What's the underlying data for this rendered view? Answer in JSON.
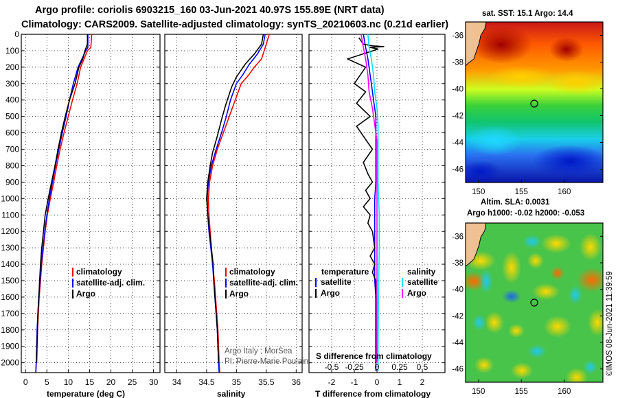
{
  "title_line1": "Argo profile: coriolis 6903215_160 03-Jun-2021 40.97S 155.89E (NRT data)",
  "title_line2": "Climatology: CARS2009. Satellite-adjusted climatology: synTS_20210603.nc (0.21d earlier)",
  "colors": {
    "climatology": "#ff0000",
    "satellite": "#0000ff",
    "argo": "#000000",
    "sat_t": "#00e0ff",
    "sal_diff": "#ff00ff"
  },
  "chart_data": [
    {
      "type": "line",
      "name": "temperature-panel",
      "xlabel": "temperature (deg C)",
      "xlim": [
        -1,
        31.5
      ],
      "ylim": [
        2060,
        0
      ],
      "xticks": [
        0,
        5,
        10,
        15,
        20,
        25,
        30
      ],
      "yticks": [
        0,
        100,
        200,
        300,
        400,
        500,
        600,
        700,
        800,
        900,
        1000,
        1100,
        1200,
        1300,
        1400,
        1500,
        1600,
        1700,
        1800,
        1900,
        2000
      ],
      "legend": [
        "climatology",
        "satellite-adj. clim.",
        "Argo"
      ],
      "series": [
        {
          "name": "climatology",
          "color": "red",
          "points": [
            [
              15.5,
              0
            ],
            [
              15.3,
              80
            ],
            [
              14.5,
              100
            ],
            [
              13.7,
              150
            ],
            [
              12.9,
              200
            ],
            [
              12.1,
              300
            ],
            [
              11.0,
              400
            ],
            [
              10.0,
              500
            ],
            [
              9.0,
              600
            ],
            [
              8.1,
              700
            ],
            [
              7.3,
              800
            ],
            [
              6.6,
              900
            ],
            [
              5.8,
              1000
            ],
            [
              5.1,
              1100
            ],
            [
              4.6,
              1200
            ],
            [
              4.2,
              1300
            ],
            [
              3.8,
              1400
            ],
            [
              3.5,
              1500
            ],
            [
              3.2,
              1600
            ],
            [
              3.0,
              1700
            ],
            [
              2.8,
              1800
            ],
            [
              2.6,
              1900
            ],
            [
              2.5,
              2000
            ],
            [
              2.4,
              2060
            ]
          ]
        },
        {
          "name": "satellite-adj. clim.",
          "color": "blue",
          "points": [
            [
              14.6,
              0
            ],
            [
              14.6,
              80
            ],
            [
              14.1,
              100
            ],
            [
              13.2,
              150
            ],
            [
              12.3,
              200
            ],
            [
              11.2,
              300
            ],
            [
              10.3,
              400
            ],
            [
              9.5,
              500
            ],
            [
              8.6,
              600
            ],
            [
              7.8,
              700
            ],
            [
              7.0,
              800
            ],
            [
              6.3,
              900
            ],
            [
              5.6,
              1000
            ],
            [
              5.0,
              1100
            ],
            [
              4.5,
              1200
            ],
            [
              4.1,
              1300
            ],
            [
              3.7,
              1400
            ],
            [
              3.4,
              1500
            ],
            [
              3.1,
              1600
            ],
            [
              2.9,
              1700
            ],
            [
              2.7,
              1800
            ],
            [
              2.6,
              1900
            ],
            [
              2.5,
              2000
            ],
            [
              2.4,
              2060
            ]
          ]
        },
        {
          "name": "Argo",
          "color": "black",
          "points": [
            [
              14.5,
              0
            ],
            [
              14.5,
              60
            ],
            [
              13.9,
              100
            ],
            [
              13.4,
              150
            ],
            [
              12.5,
              200
            ],
            [
              11.6,
              300
            ],
            [
              10.3,
              400
            ],
            [
              9.3,
              500
            ],
            [
              8.4,
              600
            ],
            [
              7.6,
              700
            ],
            [
              6.9,
              800
            ],
            [
              6.1,
              900
            ],
            [
              5.3,
              1000
            ],
            [
              4.6,
              1100
            ],
            [
              4.2,
              1200
            ],
            [
              3.8,
              1300
            ],
            [
              3.5,
              1400
            ],
            [
              3.3,
              1500
            ],
            [
              3.1,
              1600
            ],
            [
              2.9,
              1700
            ],
            [
              2.8,
              1800
            ],
            [
              2.7,
              1900
            ],
            [
              2.6,
              2000
            ]
          ]
        }
      ]
    },
    {
      "type": "line",
      "name": "salinity-panel",
      "xlabel": "salinity",
      "xlim": [
        33.8,
        36.1
      ],
      "ylim": [
        2060,
        0
      ],
      "xticks": [
        34,
        34.5,
        35,
        35.5,
        36
      ],
      "legend": [
        "climatology",
        "satellite-adj. clim.",
        "Argo"
      ],
      "annotation": [
        "Argo Italy ; MorSea",
        "PI: Pierre-Marie Poulain"
      ],
      "series": [
        {
          "name": "climatology",
          "color": "red",
          "points": [
            [
              35.55,
              0
            ],
            [
              35.5,
              60
            ],
            [
              35.42,
              150
            ],
            [
              35.3,
              200
            ],
            [
              35.2,
              250
            ],
            [
              35.08,
              300
            ],
            [
              34.98,
              400
            ],
            [
              34.88,
              500
            ],
            [
              34.78,
              600
            ],
            [
              34.68,
              700
            ],
            [
              34.6,
              800
            ],
            [
              34.55,
              900
            ],
            [
              34.53,
              1000
            ],
            [
              34.54,
              1100
            ],
            [
              34.56,
              1200
            ],
            [
              34.58,
              1300
            ],
            [
              34.6,
              1400
            ],
            [
              34.63,
              1500
            ],
            [
              34.65,
              1600
            ],
            [
              34.67,
              1700
            ],
            [
              34.69,
              1800
            ],
            [
              34.7,
              1900
            ],
            [
              34.71,
              2000
            ],
            [
              34.72,
              2060
            ]
          ]
        },
        {
          "name": "satellite-adj. clim.",
          "color": "blue",
          "points": [
            [
              35.48,
              0
            ],
            [
              35.45,
              60
            ],
            [
              35.35,
              120
            ],
            [
              35.22,
              180
            ],
            [
              35.1,
              250
            ],
            [
              35.0,
              300
            ],
            [
              34.9,
              400
            ],
            [
              34.83,
              500
            ],
            [
              34.75,
              600
            ],
            [
              34.66,
              700
            ],
            [
              34.58,
              800
            ],
            [
              34.53,
              900
            ],
            [
              34.51,
              1000
            ],
            [
              34.52,
              1100
            ],
            [
              34.54,
              1200
            ],
            [
              34.57,
              1300
            ],
            [
              34.6,
              1400
            ],
            [
              34.62,
              1500
            ],
            [
              34.64,
              1600
            ],
            [
              34.66,
              1700
            ],
            [
              34.68,
              1800
            ],
            [
              34.69,
              1900
            ],
            [
              34.7,
              2000
            ],
            [
              34.71,
              2060
            ]
          ]
        },
        {
          "name": "Argo",
          "color": "black",
          "points": [
            [
              35.45,
              0
            ],
            [
              35.42,
              60
            ],
            [
              35.3,
              120
            ],
            [
              35.15,
              180
            ],
            [
              35.0,
              260
            ],
            [
              34.92,
              320
            ],
            [
              34.82,
              430
            ],
            [
              34.75,
              520
            ],
            [
              34.68,
              620
            ],
            [
              34.6,
              720
            ],
            [
              34.56,
              800
            ],
            [
              34.52,
              900
            ],
            [
              34.5,
              1000
            ],
            [
              34.52,
              1100
            ],
            [
              34.55,
              1200
            ],
            [
              34.58,
              1300
            ],
            [
              34.61,
              1400
            ],
            [
              34.62,
              1500
            ],
            [
              34.64,
              1600
            ],
            [
              34.66,
              1700
            ],
            [
              34.68,
              1800
            ],
            [
              34.69,
              1900
            ],
            [
              34.7,
              2000
            ]
          ]
        }
      ]
    },
    {
      "type": "line",
      "name": "difference-panel",
      "xlabel": "T difference from climatology",
      "xlabel2": "S difference from climatology",
      "xlim": [
        -3,
        3
      ],
      "ylim": [
        2060,
        0
      ],
      "xticks": [
        -2,
        -1,
        0,
        1,
        2
      ],
      "xtick_labels": [
        "-2",
        "-1",
        "0",
        "1",
        "2"
      ],
      "xticks2": [
        -2,
        -1,
        0,
        1,
        2
      ],
      "xtick_labels2": [
        "-0.5",
        "-0.25",
        "0",
        "0.25",
        "0.5"
      ],
      "legend_left_title": "temperature",
      "legend_right_title": "salinity",
      "legend_left": [
        "satellite",
        "Argo"
      ],
      "legend_right": [
        "satellite",
        "Argo"
      ],
      "series": [
        {
          "name": "T satellite",
          "color": "blue",
          "points": [
            [
              -0.6,
              0
            ],
            [
              -0.5,
              80
            ],
            [
              -0.4,
              150
            ],
            [
              -0.3,
              250
            ],
            [
              -0.25,
              300
            ],
            [
              -0.15,
              400
            ],
            [
              -0.05,
              500
            ],
            [
              -0.05,
              600
            ],
            [
              -0.05,
              700
            ],
            [
              -0.05,
              800
            ],
            [
              -0.05,
              900
            ],
            [
              -0.1,
              1000
            ],
            [
              -0.1,
              1100
            ],
            [
              -0.1,
              1200
            ],
            [
              -0.1,
              1300
            ],
            [
              -0.1,
              1400
            ],
            [
              -0.1,
              1500
            ],
            [
              -0.05,
              1600
            ],
            [
              -0.05,
              1700
            ],
            [
              -0.05,
              1800
            ],
            [
              -0.05,
              1900
            ],
            [
              -0.05,
              2000
            ],
            [
              -0.05,
              2050
            ]
          ]
        },
        {
          "name": "T Argo",
          "color": "black",
          "points": [
            [
              -0.8,
              20
            ],
            [
              -0.6,
              60
            ],
            [
              -0.2,
              70
            ],
            [
              0.3,
              75
            ],
            [
              -0.3,
              80
            ],
            [
              0.05,
              90
            ],
            [
              -1.3,
              150
            ],
            [
              -0.5,
              200
            ],
            [
              -1.0,
              300
            ],
            [
              -0.5,
              350
            ],
            [
              -0.9,
              420
            ],
            [
              -0.3,
              500
            ],
            [
              -0.9,
              560
            ],
            [
              -0.6,
              620
            ],
            [
              -0.2,
              700
            ],
            [
              -0.6,
              780
            ],
            [
              -0.4,
              850
            ],
            [
              -0.2,
              900
            ],
            [
              -0.5,
              950
            ],
            [
              -0.3,
              1000
            ],
            [
              -0.6,
              1050
            ],
            [
              -0.3,
              1100
            ],
            [
              -0.4,
              1150
            ],
            [
              -0.2,
              1200
            ],
            [
              -0.1,
              1300
            ],
            [
              -0.3,
              1350
            ],
            [
              -0.1,
              1400
            ],
            [
              -0.2,
              1450
            ],
            [
              -0.05,
              1500
            ],
            [
              -0.05,
              1600
            ],
            [
              -0.05,
              1700
            ],
            [
              -0.05,
              1800
            ],
            [
              -0.05,
              1900
            ],
            [
              -0.05,
              2000
            ]
          ]
        },
        {
          "name": "S satellite",
          "color": "cyan",
          "points": [
            [
              -0.4,
              0
            ],
            [
              -0.35,
              80
            ],
            [
              -0.25,
              150
            ],
            [
              -0.15,
              250
            ],
            [
              -0.1,
              350
            ],
            [
              0.0,
              450
            ],
            [
              0.05,
              550
            ],
            [
              0.05,
              700
            ],
            [
              0.05,
              900
            ],
            [
              0.1,
              1100
            ],
            [
              0.1,
              1300
            ],
            [
              0.08,
              1500
            ],
            [
              0.06,
              1700
            ],
            [
              0.05,
              1900
            ],
            [
              0.05,
              2050
            ]
          ]
        },
        {
          "name": "S Argo",
          "color": "magenta",
          "points": [
            [
              -0.7,
              0
            ],
            [
              -0.6,
              80
            ],
            [
              -0.5,
              150
            ],
            [
              -0.4,
              250
            ],
            [
              -0.35,
              350
            ],
            [
              -0.2,
              450
            ],
            [
              -0.1,
              550
            ],
            [
              0.0,
              650
            ],
            [
              0.0,
              800
            ],
            [
              0.0,
              1000
            ],
            [
              0.0,
              1200
            ],
            [
              0.0,
              1400
            ],
            [
              0.0,
              1600
            ],
            [
              0.0,
              1800
            ],
            [
              0.0,
              2000
            ]
          ]
        }
      ]
    }
  ],
  "map_sst": {
    "title": "sat. SST: 15.1  Argo: 14.4",
    "xticks": [
      "150",
      "155",
      "160"
    ],
    "yticks": [
      "-36",
      "-38",
      "-40",
      "-42",
      "-44",
      "-46"
    ],
    "lon_range": [
      148.5,
      164.5
    ],
    "lat_range": [
      -35,
      -47
    ],
    "float_lon": 155.89,
    "float_lat": -40.97
  },
  "map_sla": {
    "title1": "Altim. SLA: 0.0031",
    "title2": "Argo h1000: -0.02 h2000: -0.053",
    "xticks": [
      "150",
      "155",
      "160"
    ],
    "yticks": [
      "-36",
      "-38",
      "-40",
      "-42",
      "-44",
      "-46"
    ],
    "lon_range": [
      148.5,
      164.5
    ],
    "lat_range": [
      -35,
      -47
    ],
    "float_lon": 155.89,
    "float_lat": -40.97
  },
  "credit": "©IMOS 08-Jun-2021 11:39:59"
}
